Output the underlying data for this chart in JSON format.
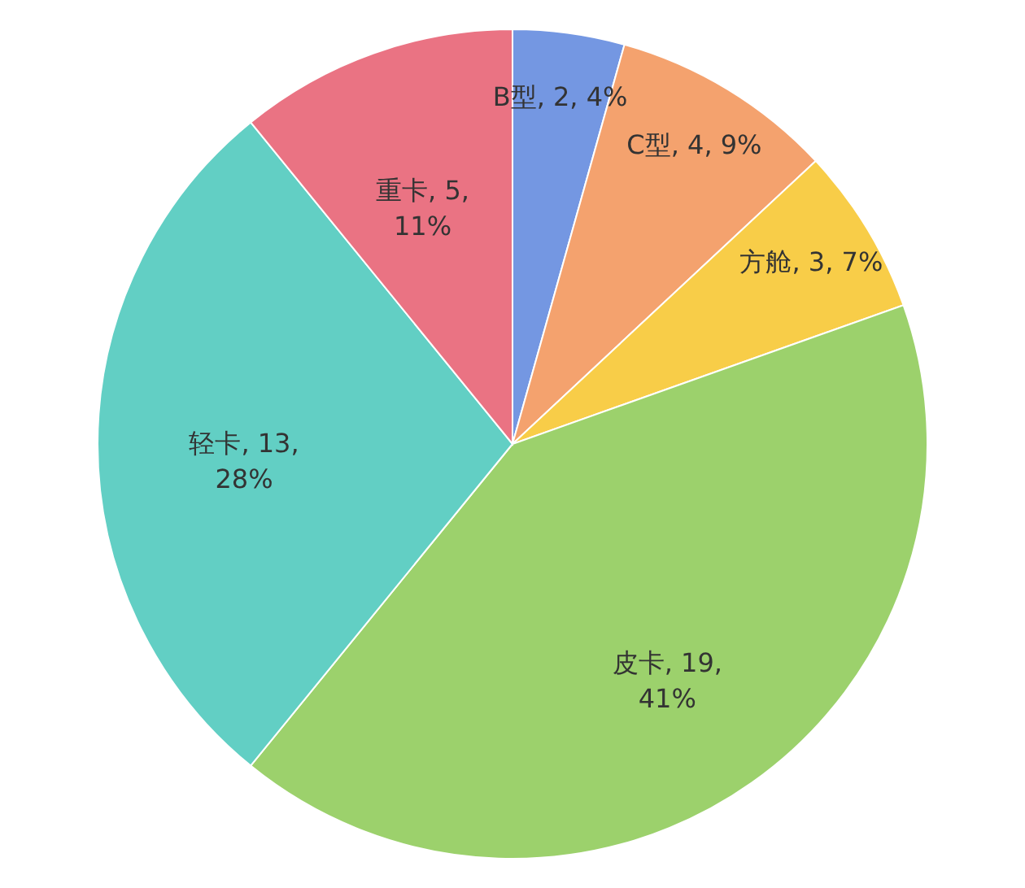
{
  "chart_data": {
    "type": "pie",
    "categories": [
      "B型",
      "C型",
      "方舱",
      "皮卡",
      "轻卡",
      "重卡"
    ],
    "values": [
      2,
      4,
      3,
      19,
      13,
      5
    ],
    "colors": [
      "#7497e2",
      "#f4a26e",
      "#f8cd48",
      "#9cd16c",
      "#62cfc4",
      "#ea7383"
    ],
    "value_labels": [
      "2, 4%",
      "4, 9%",
      "3, 7%",
      "19,\n41%",
      "13,\n28%",
      "5,\n11%"
    ]
  }
}
